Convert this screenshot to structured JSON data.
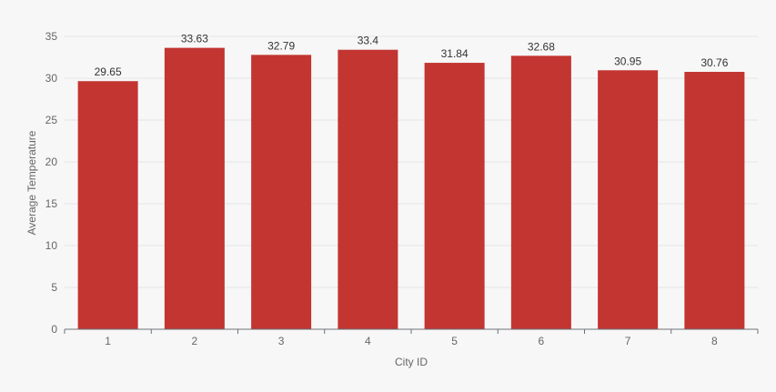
{
  "chart_data": {
    "type": "bar",
    "categories": [
      "1",
      "2",
      "3",
      "4",
      "5",
      "6",
      "7",
      "8"
    ],
    "values": [
      29.65,
      33.63,
      32.79,
      33.4,
      31.84,
      32.68,
      30.95,
      30.76
    ],
    "data_labels": [
      "29.65",
      "33.63",
      "32.79",
      "33.4",
      "31.84",
      "32.68",
      "30.95",
      "30.76"
    ],
    "xlabel": "City ID",
    "ylabel": "Average Temperature",
    "ylim": [
      0,
      35
    ],
    "yticks": [
      "0",
      "5",
      "10",
      "15",
      "20",
      "25",
      "30",
      "35"
    ],
    "grid": true,
    "colors": {
      "bar": "#c23531",
      "grid": "#e6e6e6",
      "axis": "#6e7079",
      "background": "#f7f7f7"
    }
  }
}
